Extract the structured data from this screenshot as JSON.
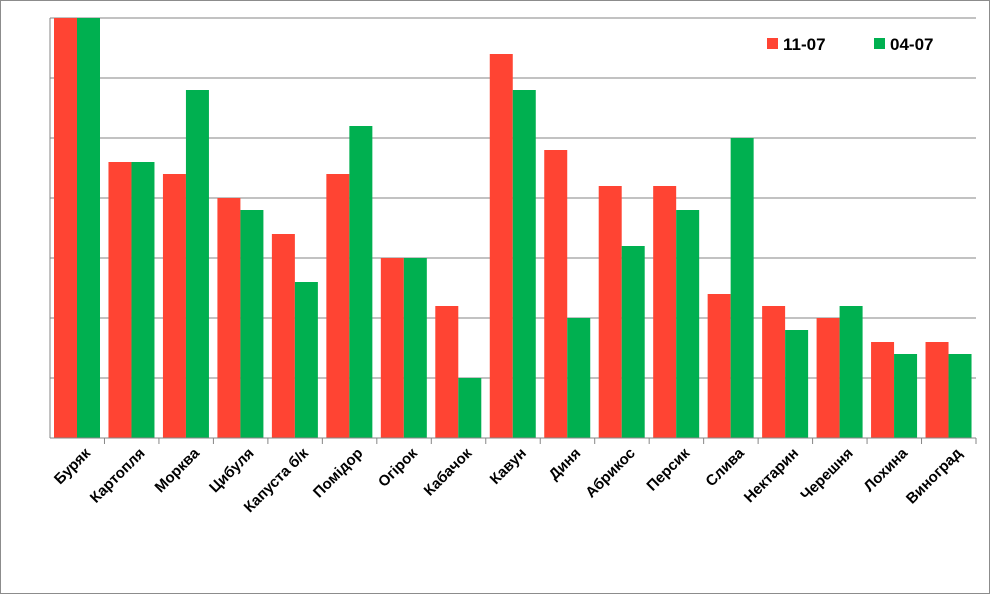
{
  "chart_data": {
    "type": "bar",
    "categories": [
      "Буряк",
      "Картопля",
      "Морква",
      "Цибуля",
      "Капуста б/к",
      "Помідор",
      "Огірок",
      "Кабачок",
      "Кавун",
      "Диня",
      "Абрикос",
      "Персик",
      "Слива",
      "Нектарин",
      "Черешня",
      "Лохина",
      "Виноград"
    ],
    "series": [
      {
        "name": "11-07",
        "color": "#ff4433",
        "values": [
          7.0,
          4.6,
          4.4,
          4.0,
          3.4,
          4.4,
          3.0,
          2.2,
          6.4,
          4.8,
          4.2,
          4.2,
          2.4,
          2.2,
          2.0,
          1.6,
          1.6
        ]
      },
      {
        "name": "04-07",
        "color": "#00b050",
        "values": [
          7.0,
          4.6,
          5.8,
          3.8,
          2.6,
          5.2,
          3.0,
          1.0,
          5.8,
          2.0,
          3.2,
          3.8,
          5.0,
          1.8,
          2.2,
          1.4,
          1.4
        ]
      }
    ],
    "ylim": [
      0,
      7
    ],
    "grid": true,
    "y_tick_labels_shown": false,
    "legend_position": "top-right"
  }
}
